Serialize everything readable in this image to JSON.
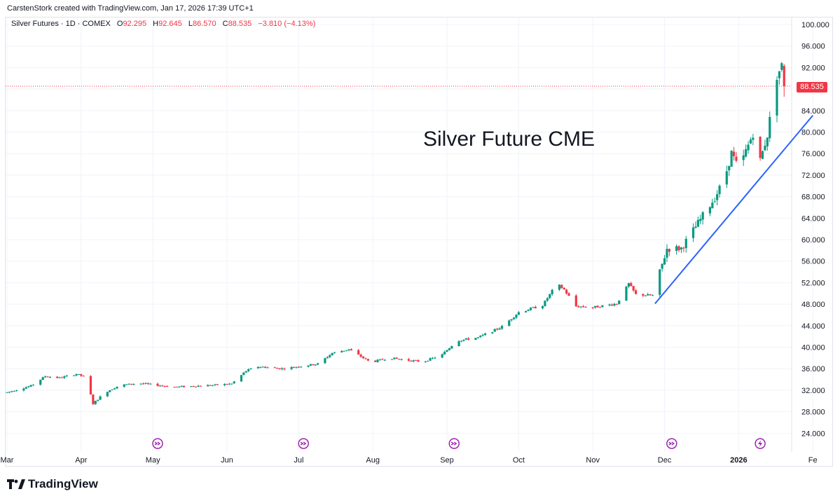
{
  "header": {
    "credit": "CarstenStork created with TradingView.com, Jan 17, 2026 17:39 UTC+1"
  },
  "legend": {
    "symbol": "Silver Futures · 1D · COMEX",
    "o_label": "O",
    "o_value": "92.295",
    "h_label": "H",
    "h_value": "92.645",
    "l_label": "L",
    "l_value": "86.570",
    "c_label": "C",
    "c_value": "88.535",
    "change": "−3.810 (−4.13%)"
  },
  "annotation": "Silver Future CME",
  "last_price_label": "88.535",
  "brand": {
    "name": "TradingView"
  },
  "colors": {
    "up": "#089981",
    "down": "#f23645",
    "trendline": "#2962ff",
    "event_icon": "#9c27b0",
    "grid": "#f0f3fa"
  },
  "chart_data": {
    "type": "candlestick",
    "title": "",
    "y_ticks": [
      "100.000",
      "96.000",
      "92.000",
      "88.000",
      "84.000",
      "80.000",
      "76.000",
      "72.000",
      "68.000",
      "64.000",
      "60.000",
      "56.000",
      "52.000",
      "48.000",
      "44.000",
      "40.000",
      "36.000",
      "32.000",
      "28.000",
      "24.000"
    ],
    "ylim": [
      22.5,
      101.5
    ],
    "x_labels": [
      "Mar",
      "Apr",
      "May",
      "Jun",
      "Jul",
      "Aug",
      "Sep",
      "Oct",
      "Nov",
      "Dec",
      "2026",
      "Fe"
    ],
    "x_label_days": [
      0,
      31,
      61,
      92,
      122,
      153,
      184,
      214,
      245,
      275,
      306,
      337
    ],
    "anchors": [
      {
        "day": 0,
        "price": 31.6
      },
      {
        "day": 10,
        "price": 32.8
      },
      {
        "day": 16,
        "price": 34.6
      },
      {
        "day": 22,
        "price": 34.3
      },
      {
        "day": 29,
        "price": 35.0
      },
      {
        "day": 33,
        "price": 34.4
      },
      {
        "day": 36,
        "price": 29.5
      },
      {
        "day": 41,
        "price": 31.6
      },
      {
        "day": 47,
        "price": 32.9
      },
      {
        "day": 55,
        "price": 33.3
      },
      {
        "day": 70,
        "price": 32.6
      },
      {
        "day": 85,
        "price": 32.9
      },
      {
        "day": 94,
        "price": 33.2
      },
      {
        "day": 100,
        "price": 35.6
      },
      {
        "day": 105,
        "price": 36.4
      },
      {
        "day": 115,
        "price": 36.0
      },
      {
        "day": 130,
        "price": 36.9
      },
      {
        "day": 136,
        "price": 38.9
      },
      {
        "day": 143,
        "price": 39.6
      },
      {
        "day": 152,
        "price": 37.2
      },
      {
        "day": 160,
        "price": 38.0
      },
      {
        "day": 167,
        "price": 37.6
      },
      {
        "day": 174,
        "price": 37.3
      },
      {
        "day": 182,
        "price": 38.6
      },
      {
        "day": 188,
        "price": 41.2
      },
      {
        "day": 197,
        "price": 41.8
      },
      {
        "day": 207,
        "price": 43.8
      },
      {
        "day": 214,
        "price": 46.5
      },
      {
        "day": 224,
        "price": 47.8
      },
      {
        "day": 230,
        "price": 51.8
      },
      {
        "day": 233,
        "price": 50.7
      },
      {
        "day": 238,
        "price": 47.6
      },
      {
        "day": 245,
        "price": 47.4
      },
      {
        "day": 255,
        "price": 48.1
      },
      {
        "day": 260,
        "price": 51.8
      },
      {
        "day": 263,
        "price": 49.8
      },
      {
        "day": 270,
        "price": 49.6
      },
      {
        "day": 276,
        "price": 58.3
      },
      {
        "day": 282,
        "price": 58.4
      },
      {
        "day": 288,
        "price": 62.4
      },
      {
        "day": 296,
        "price": 67.8
      },
      {
        "day": 300,
        "price": 71.2
      },
      {
        "day": 303,
        "price": 76.1
      },
      {
        "day": 306,
        "price": 73.0
      },
      {
        "day": 312,
        "price": 79.8
      },
      {
        "day": 315,
        "price": 74.7
      },
      {
        "day": 318,
        "price": 79.5
      },
      {
        "day": 322,
        "price": 90.5
      },
      {
        "day": 324,
        "price": 92.3
      },
      {
        "day": 325,
        "price": 88.535
      }
    ],
    "last_candle": {
      "open": 92.295,
      "high": 92.645,
      "low": 86.57,
      "close": 88.535
    },
    "event_days": [
      63,
      124,
      187,
      278,
      315
    ],
    "trendline": [
      {
        "day": 271,
        "price": 48.1
      },
      {
        "day": 337,
        "price": 83.1
      }
    ]
  }
}
